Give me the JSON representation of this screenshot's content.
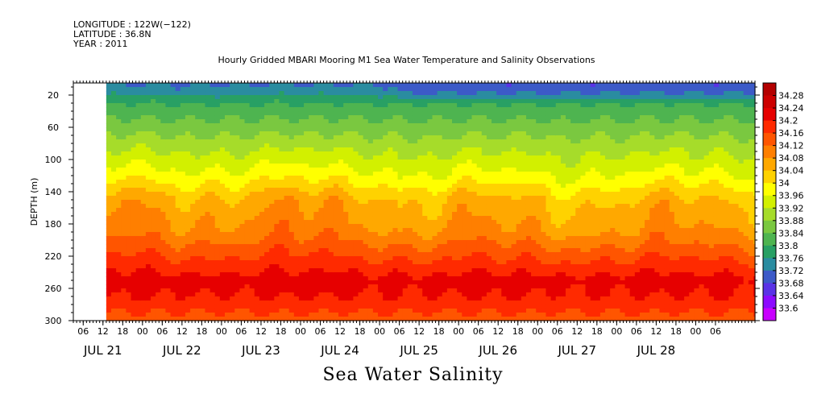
{
  "header": {
    "longitude": "LONGITUDE : 122W(−122)",
    "latitude": "LATITUDE : 36.8N",
    "year": "YEAR : 2011"
  },
  "chart_data": {
    "type": "heatmap",
    "title": "Hourly Gridded MBARI Mooring M1 Sea Water Temperature and Salinity Observations",
    "subtitle": "Sea Water Salinity",
    "xlabel": "",
    "ylabel": "DEPTH (m)",
    "x_hour_ticks": [
      "06",
      "12",
      "18",
      "00",
      "06",
      "12",
      "18",
      "00",
      "06",
      "12",
      "18",
      "00",
      "06",
      "12",
      "18",
      "00",
      "06",
      "12",
      "18",
      "00",
      "06",
      "12",
      "18",
      "00",
      "06",
      "12",
      "18",
      "00",
      "06",
      "12",
      "18",
      "00",
      "06"
    ],
    "x_day_labels": [
      "JUL 21",
      "JUL 22",
      "JUL 23",
      "JUL 24",
      "JUL 25",
      "JUL 26",
      "JUL 27",
      "JUL 28"
    ],
    "y_ticks": [
      20,
      60,
      100,
      140,
      180,
      220,
      260,
      300
    ],
    "ylim": [
      300,
      5
    ],
    "x_range_hours_from_jul21_00": [
      3,
      210
    ],
    "data_start_hours_from_jul21_00": 13,
    "colorbar": {
      "labels": [
        "34.28",
        "34.24",
        "34.2",
        "34.16",
        "34.12",
        "34.08",
        "34.04",
        "34",
        "33.96",
        "33.92",
        "33.88",
        "33.84",
        "33.8",
        "33.76",
        "33.72",
        "33.68",
        "33.64",
        "33.6"
      ],
      "colors": [
        "#b30000",
        "#cc0000",
        "#e60000",
        "#ff2a00",
        "#ff5500",
        "#ff7f00",
        "#ffa800",
        "#ffd200",
        "#ffff00",
        "#d2f000",
        "#a6dc2a",
        "#7ac840",
        "#4eb450",
        "#28a064",
        "#2a8ca0",
        "#3c5ac8",
        "#5a32e6",
        "#8c0aff",
        "#c800ff"
      ]
    },
    "depth_profile_typical": [
      {
        "depth": 10,
        "salinity": 33.72
      },
      {
        "depth": 30,
        "salinity": 33.8
      },
      {
        "depth": 60,
        "salinity": 33.86
      },
      {
        "depth": 90,
        "salinity": 33.92
      },
      {
        "depth": 120,
        "salinity": 33.98
      },
      {
        "depth": 150,
        "salinity": 34.06
      },
      {
        "depth": 190,
        "salinity": 34.1
      },
      {
        "depth": 220,
        "salinity": 34.16
      },
      {
        "depth": 250,
        "salinity": 34.22
      },
      {
        "depth": 270,
        "salinity": 34.2
      },
      {
        "depth": 300,
        "salinity": 34.14
      }
    ]
  }
}
